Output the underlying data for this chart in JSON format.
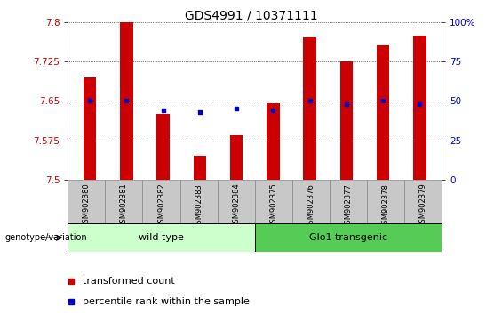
{
  "title": "GDS4991 / 10371111",
  "categories": [
    "GSM902380",
    "GSM902381",
    "GSM902382",
    "GSM902383",
    "GSM902384",
    "GSM902375",
    "GSM902376",
    "GSM902377",
    "GSM902378",
    "GSM902379"
  ],
  "red_values": [
    7.695,
    7.8,
    7.625,
    7.545,
    7.585,
    7.645,
    7.77,
    7.725,
    7.755,
    7.775
  ],
  "blue_percentile": [
    50,
    50,
    44,
    43,
    45,
    44,
    50,
    48,
    50,
    48
  ],
  "ylim": [
    7.5,
    7.8
  ],
  "yticks": [
    7.5,
    7.575,
    7.65,
    7.725,
    7.8
  ],
  "ytick_labels": [
    "7.5",
    "7.575",
    "7.65",
    "7.725",
    "7.8"
  ],
  "right_yticks": [
    0,
    25,
    50,
    75,
    100
  ],
  "right_ytick_labels": [
    "0",
    "25",
    "50",
    "75",
    "100%"
  ],
  "red_color": "#CC0000",
  "blue_color": "#0000CC",
  "bar_width": 0.35,
  "group1_label": "wild type",
  "group2_label": "Glo1 transgenic",
  "group1_color": "#ccffcc",
  "group2_color": "#55cc55",
  "legend_red": "transformed count",
  "legend_blue": "percentile rank within the sample",
  "genotype_label": "genotype/variation",
  "col_bg": "#c8c8c8",
  "col_edge": "#888888"
}
